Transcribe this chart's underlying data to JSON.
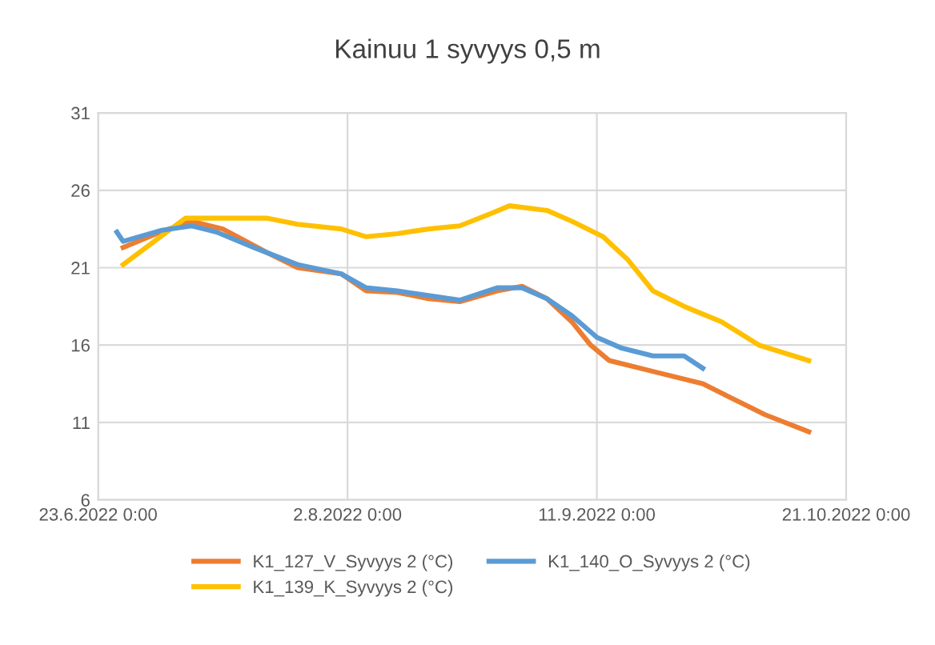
{
  "chart_data": {
    "type": "line",
    "title": "Kainuu 1 syvyys 0,5 m",
    "xlim": [
      "2022-06-23",
      "2022-10-21"
    ],
    "xticks": [
      {
        "value": "2022-06-23",
        "label": "23.6.2022 0:00"
      },
      {
        "value": "2022-08-02",
        "label": "2.8.2022 0:00"
      },
      {
        "value": "2022-09-11",
        "label": "11.9.2022 0:00"
      },
      {
        "value": "2022-10-21",
        "label": "21.10.2022 0:00"
      }
    ],
    "ylim": [
      6,
      31
    ],
    "yticks": [
      6,
      11,
      16,
      21,
      26,
      31
    ],
    "grid": true,
    "legend": "bottom",
    "marker": "none",
    "line_style": "solid",
    "series": [
      {
        "name": "K1_127_V_Syvyys 2 (°C)",
        "color": "#ed7d31",
        "x": [
          "2022-06-27",
          "2022-07-03",
          "2022-07-08",
          "2022-07-13",
          "2022-07-20",
          "2022-07-25",
          "2022-08-01",
          "2022-08-05",
          "2022-08-10",
          "2022-08-15",
          "2022-08-20",
          "2022-08-26",
          "2022-08-30",
          "2022-09-03",
          "2022-09-07",
          "2022-09-10",
          "2022-09-13",
          "2022-09-20",
          "2022-09-28",
          "2022-10-03",
          "2022-10-08",
          "2022-10-15"
        ],
        "values": [
          22.3,
          23.3,
          24.0,
          23.5,
          22.0,
          21.0,
          20.6,
          19.5,
          19.4,
          19.0,
          18.8,
          19.5,
          19.8,
          19.0,
          17.5,
          16.0,
          15.0,
          14.3,
          13.5,
          12.5,
          11.5,
          10.4
        ]
      },
      {
        "name": "K1_139_K_Syvyys 2 (°C)",
        "color": "#ffc000",
        "x": [
          "2022-06-27",
          "2022-07-03",
          "2022-07-07",
          "2022-07-20",
          "2022-07-25",
          "2022-08-01",
          "2022-08-05",
          "2022-08-10",
          "2022-08-15",
          "2022-08-20",
          "2022-08-25",
          "2022-08-28",
          "2022-09-03",
          "2022-09-07",
          "2022-09-12",
          "2022-09-16",
          "2022-09-20",
          "2022-09-25",
          "2022-10-01",
          "2022-10-07",
          "2022-10-15"
        ],
        "values": [
          21.2,
          23.0,
          24.2,
          24.2,
          23.8,
          23.5,
          23.0,
          23.2,
          23.5,
          23.7,
          24.5,
          25.0,
          24.7,
          24.0,
          23.0,
          21.5,
          19.5,
          18.5,
          17.5,
          16.0,
          15.0
        ]
      },
      {
        "name": "K1_140_O_Syvyys 2 (°C)",
        "color": "#5b9bd5",
        "x": [
          "2022-06-26",
          "2022-06-27",
          "2022-07-03",
          "2022-07-08",
          "2022-07-12",
          "2022-07-18",
          "2022-07-25",
          "2022-08-01",
          "2022-08-05",
          "2022-08-10",
          "2022-08-15",
          "2022-08-20",
          "2022-08-26",
          "2022-08-30",
          "2022-09-03",
          "2022-09-07",
          "2022-09-11",
          "2022-09-15",
          "2022-09-20",
          "2022-09-25",
          "2022-09-28"
        ],
        "values": [
          23.3,
          22.7,
          23.4,
          23.7,
          23.3,
          22.3,
          21.2,
          20.6,
          19.7,
          19.5,
          19.2,
          18.9,
          19.7,
          19.7,
          19.0,
          17.9,
          16.5,
          15.8,
          15.3,
          15.3,
          14.5
        ]
      }
    ]
  }
}
